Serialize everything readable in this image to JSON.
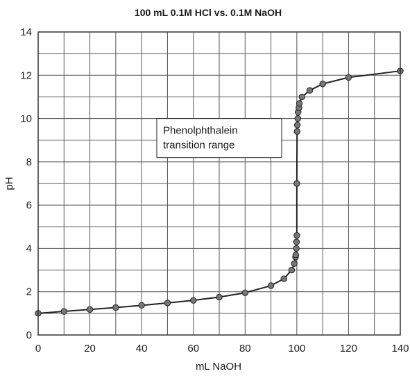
{
  "chart_data": {
    "type": "scatter",
    "title": "100 mL 0.1M HCl vs. 0.1M NaOH",
    "xlabel": "mL NaOH",
    "ylabel": "pH",
    "xlim": [
      0,
      140
    ],
    "ylim": [
      0,
      14
    ],
    "grid": true,
    "x_ticks": [
      0,
      20,
      40,
      60,
      80,
      100,
      120,
      140
    ],
    "y_ticks": [
      0,
      2,
      4,
      6,
      8,
      10,
      12,
      14
    ],
    "series": [
      {
        "points": [
          [
            0,
            1.0
          ],
          [
            10,
            1.09
          ],
          [
            20,
            1.18
          ],
          [
            30,
            1.27
          ],
          [
            40,
            1.37
          ],
          [
            50,
            1.48
          ],
          [
            60,
            1.6
          ],
          [
            70,
            1.75
          ],
          [
            80,
            1.95
          ],
          [
            90,
            2.28
          ],
          [
            95,
            2.6
          ],
          [
            98,
            3.0
          ],
          [
            99,
            3.3
          ],
          [
            99.5,
            3.6
          ],
          [
            99.6,
            3.7
          ],
          [
            99.8,
            4.0
          ],
          [
            99.9,
            4.3
          ],
          [
            100,
            4.6
          ],
          [
            100,
            7.0
          ],
          [
            100.1,
            9.4
          ],
          [
            100.2,
            9.7
          ],
          [
            100.4,
            10.0
          ],
          [
            100.5,
            10.3
          ],
          [
            100.8,
            10.5
          ],
          [
            101,
            10.7
          ],
          [
            102,
            11.0
          ],
          [
            105,
            11.3
          ],
          [
            110,
            11.6
          ],
          [
            120,
            11.9
          ],
          [
            140,
            12.2
          ]
        ],
        "color": "#777777"
      }
    ],
    "annotations": [
      {
        "text_lines": [
          "Phenolphthalein",
          "transition range"
        ],
        "ylim": [
          8.2,
          10.0
        ]
      }
    ]
  }
}
